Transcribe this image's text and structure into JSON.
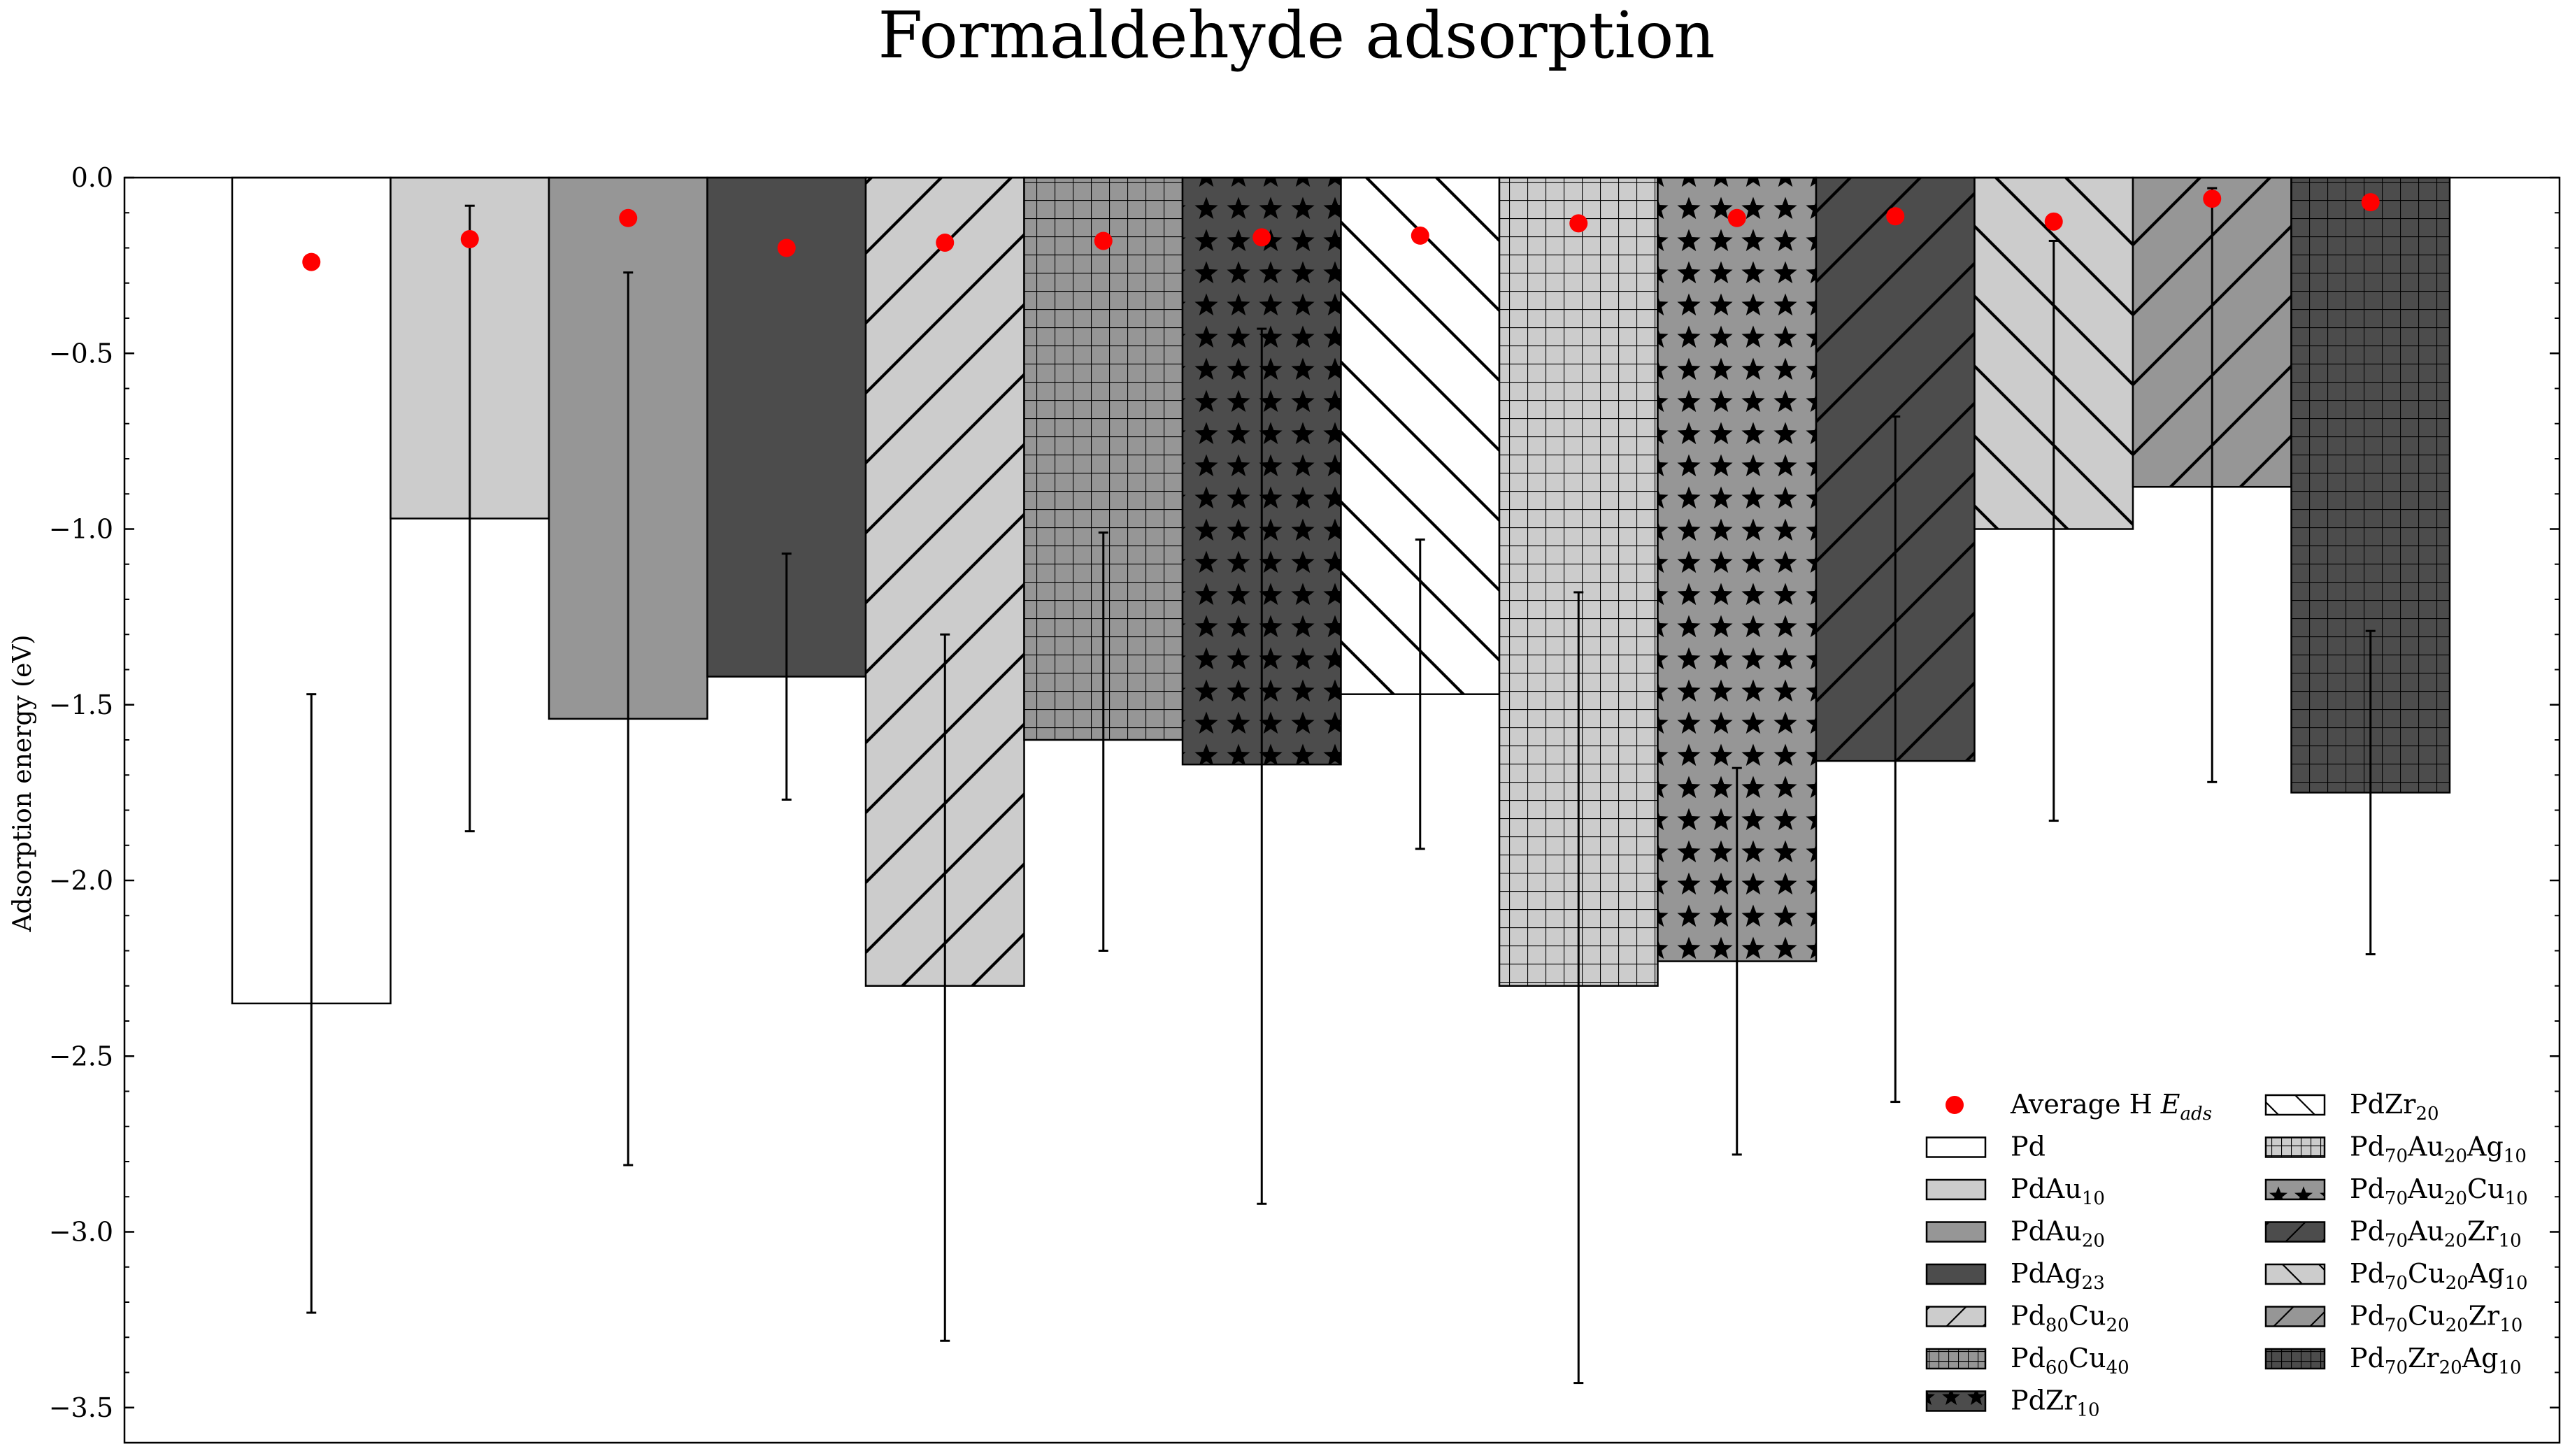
{
  "chart_data": {
    "type": "bar",
    "title": "Formaldehyde adsorption",
    "xlabel": "",
    "ylabel": "Adsorption energy (eV)",
    "ylim": [
      -3.6,
      0.0
    ],
    "yticks": [
      0.0,
      -0.5,
      -1.0,
      -1.5,
      -2.0,
      -2.5,
      -3.0,
      -3.5
    ],
    "ytick_labels": [
      "0.0",
      "−0.5",
      "−1.0",
      "−1.5",
      "−2.0",
      "−2.5",
      "−3.0",
      "−3.5"
    ],
    "grid": false,
    "legend_position": "lower-right",
    "legend_columns": 2,
    "scatter_series": {
      "name_parts": [
        {
          "text": "Average H ",
          "italic": false,
          "sub": false
        },
        {
          "text": "E",
          "italic": true,
          "sub": false
        },
        {
          "text": "ads",
          "italic": true,
          "sub": true
        }
      ],
      "color": "#ff0000"
    },
    "bars": [
      {
        "name_parts": [
          {
            "text": "Pd",
            "sub": false
          }
        ],
        "value": -2.35,
        "avg_h": -0.24,
        "err_low": -3.23,
        "err_high": -1.47,
        "fill": "#ffffff",
        "hatch": "none"
      },
      {
        "name_parts": [
          {
            "text": "PdAu",
            "sub": false
          },
          {
            "text": "10",
            "sub": true
          }
        ],
        "value": -0.97,
        "avg_h": -0.175,
        "err_low": -1.86,
        "err_high": -0.08,
        "fill": "#cccccc",
        "hatch": "none"
      },
      {
        "name_parts": [
          {
            "text": "PdAu",
            "sub": false
          },
          {
            "text": "20",
            "sub": true
          }
        ],
        "value": -1.54,
        "avg_h": -0.115,
        "err_low": -2.81,
        "err_high": -0.27,
        "fill": "#969696",
        "hatch": "none"
      },
      {
        "name_parts": [
          {
            "text": "PdAg",
            "sub": false
          },
          {
            "text": "23",
            "sub": true
          }
        ],
        "value": -1.42,
        "avg_h": -0.2,
        "err_low": -1.77,
        "err_high": -1.07,
        "fill": "#4c4c4c",
        "hatch": "none"
      },
      {
        "name_parts": [
          {
            "text": "Pd",
            "sub": false
          },
          {
            "text": "80",
            "sub": true
          },
          {
            "text": "Cu",
            "sub": false
          },
          {
            "text": "20",
            "sub": true
          }
        ],
        "value": -2.3,
        "avg_h": -0.185,
        "err_low": -3.31,
        "err_high": -1.3,
        "fill": "#cccccc",
        "hatch": "diag"
      },
      {
        "name_parts": [
          {
            "text": "Pd",
            "sub": false
          },
          {
            "text": "60",
            "sub": true
          },
          {
            "text": "Cu",
            "sub": false
          },
          {
            "text": "40",
            "sub": true
          }
        ],
        "value": -1.6,
        "avg_h": -0.18,
        "err_low": -2.2,
        "err_high": -1.01,
        "fill": "#969696",
        "hatch": "grid"
      },
      {
        "name_parts": [
          {
            "text": "PdZr",
            "sub": false
          },
          {
            "text": "10",
            "sub": true
          }
        ],
        "value": -1.67,
        "avg_h": -0.17,
        "err_low": -2.92,
        "err_high": -0.43,
        "fill": "#4c4c4c",
        "hatch": "star"
      },
      {
        "name_parts": [
          {
            "text": "PdZr",
            "sub": false
          },
          {
            "text": "20",
            "sub": true
          }
        ],
        "value": -1.47,
        "avg_h": -0.165,
        "err_low": -1.91,
        "err_high": -1.03,
        "fill": "#ffffff",
        "hatch": "backdiag"
      },
      {
        "name_parts": [
          {
            "text": "Pd",
            "sub": false
          },
          {
            "text": "70",
            "sub": true
          },
          {
            "text": "Au",
            "sub": false
          },
          {
            "text": "20",
            "sub": true
          },
          {
            "text": "Ag",
            "sub": false
          },
          {
            "text": "10",
            "sub": true
          }
        ],
        "value": -2.3,
        "avg_h": -0.13,
        "err_low": -3.43,
        "err_high": -1.18,
        "fill": "#cccccc",
        "hatch": "grid"
      },
      {
        "name_parts": [
          {
            "text": "Pd",
            "sub": false
          },
          {
            "text": "70",
            "sub": true
          },
          {
            "text": "Au",
            "sub": false
          },
          {
            "text": "20",
            "sub": true
          },
          {
            "text": "Cu",
            "sub": false
          },
          {
            "text": "10",
            "sub": true
          }
        ],
        "value": -2.23,
        "avg_h": -0.115,
        "err_low": -2.78,
        "err_high": -1.68,
        "fill": "#969696",
        "hatch": "star"
      },
      {
        "name_parts": [
          {
            "text": "Pd",
            "sub": false
          },
          {
            "text": "70",
            "sub": true
          },
          {
            "text": "Au",
            "sub": false
          },
          {
            "text": "20",
            "sub": true
          },
          {
            "text": "Zr",
            "sub": false
          },
          {
            "text": "10",
            "sub": true
          }
        ],
        "value": -1.66,
        "avg_h": -0.11,
        "err_low": -2.63,
        "err_high": -0.68,
        "fill": "#4c4c4c",
        "hatch": "diag"
      },
      {
        "name_parts": [
          {
            "text": "Pd",
            "sub": false
          },
          {
            "text": "70",
            "sub": true
          },
          {
            "text": "Cu",
            "sub": false
          },
          {
            "text": "20",
            "sub": true
          },
          {
            "text": "Ag",
            "sub": false
          },
          {
            "text": "10",
            "sub": true
          }
        ],
        "value": -1.0,
        "avg_h": -0.125,
        "err_low": -1.83,
        "err_high": -0.18,
        "fill": "#cccccc",
        "hatch": "backdiag"
      },
      {
        "name_parts": [
          {
            "text": "Pd",
            "sub": false
          },
          {
            "text": "70",
            "sub": true
          },
          {
            "text": "Cu",
            "sub": false
          },
          {
            "text": "20",
            "sub": true
          },
          {
            "text": "Zr",
            "sub": false
          },
          {
            "text": "10",
            "sub": true
          }
        ],
        "value": -0.88,
        "avg_h": -0.06,
        "err_low": -1.72,
        "err_high": -0.03,
        "fill": "#969696",
        "hatch": "diag"
      },
      {
        "name_parts": [
          {
            "text": "Pd",
            "sub": false
          },
          {
            "text": "70",
            "sub": true
          },
          {
            "text": "Zr",
            "sub": false
          },
          {
            "text": "20",
            "sub": true
          },
          {
            "text": "Ag",
            "sub": false
          },
          {
            "text": "10",
            "sub": true
          }
        ],
        "value": -1.75,
        "avg_h": -0.07,
        "err_low": -2.21,
        "err_high": -1.29,
        "fill": "#4c4c4c",
        "hatch": "grid"
      }
    ]
  }
}
